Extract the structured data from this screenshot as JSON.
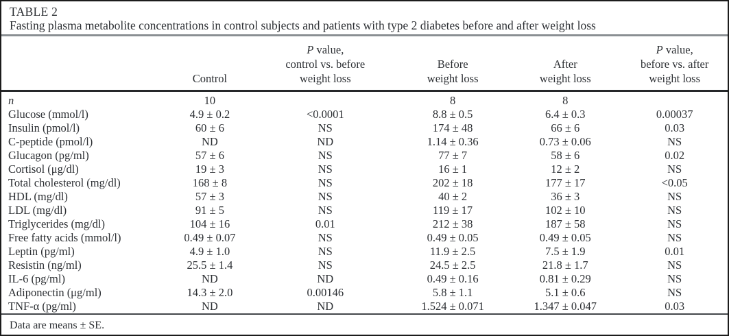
{
  "table": {
    "label": "TABLE 2",
    "caption": "Fasting plasma metabolite concentrations in control subjects and patients with type 2 diabetes before and after weight loss",
    "headers": [
      {
        "lines": []
      },
      {
        "lines": [
          "Control"
        ]
      },
      {
        "lines": [
          "P value,",
          "control vs. before",
          "weight loss"
        ]
      },
      {
        "lines": [
          "Before",
          "weight loss"
        ]
      },
      {
        "lines": [
          "After",
          "weight loss"
        ]
      },
      {
        "lines": [
          "P value,",
          "before vs. after",
          "weight loss"
        ]
      }
    ],
    "rows": [
      {
        "label": "n",
        "italic": true,
        "values": [
          "10",
          "",
          "8",
          "8",
          ""
        ]
      },
      {
        "label": "Glucose (mmol/l)",
        "values": [
          "4.9 ± 0.2",
          "<0.0001",
          "8.8 ± 0.5",
          "6.4 ± 0.3",
          "0.00037"
        ]
      },
      {
        "label": "Insulin (pmol/l)",
        "values": [
          "60 ± 6",
          "NS",
          "174 ± 48",
          "66 ± 6",
          "0.03"
        ]
      },
      {
        "label": "C-peptide (pmol/l)",
        "values": [
          "ND",
          "ND",
          "1.14 ± 0.36",
          "0.73 ± 0.06",
          "NS"
        ]
      },
      {
        "label": "Glucagon (pg/ml)",
        "values": [
          "57 ± 6",
          "NS",
          "77 ± 7",
          "58 ± 6",
          "0.02"
        ]
      },
      {
        "label": "Cortisol (μg/dl)",
        "values": [
          "19 ± 3",
          "NS",
          "16 ± 1",
          "12 ± 2",
          "NS"
        ]
      },
      {
        "label": "Total cholesterol (mg/dl)",
        "values": [
          "168 ± 8",
          "NS",
          "202 ± 18",
          "177 ± 17",
          "<0.05"
        ]
      },
      {
        "label": "HDL (mg/dl)",
        "values": [
          "57 ± 3",
          "NS",
          "40 ± 2",
          "36 ± 3",
          "NS"
        ]
      },
      {
        "label": "LDL (mg/dl)",
        "values": [
          "91 ± 5",
          "NS",
          "119 ± 17",
          "102 ± 10",
          "NS"
        ]
      },
      {
        "label": "Triglycerides (mg/dl)",
        "values": [
          "104 ± 16",
          "0.01",
          "212 ± 38",
          "187 ± 58",
          "NS"
        ]
      },
      {
        "label": "Free fatty acids (mmol/l)",
        "values": [
          "0.49 ± 0.07",
          "NS",
          "0.49 ± 0.05",
          "0.49 ± 0.05",
          "NS"
        ]
      },
      {
        "label": "Leptin (pg/ml)",
        "values": [
          "4.9 ± 1.0",
          "NS",
          "11.9 ± 2.5",
          "7.5 ± 1.9",
          "0.01"
        ]
      },
      {
        "label": "Resistin (ng/ml)",
        "values": [
          "25.5 ± 1.4",
          "NS",
          "24.5 ± 2.5",
          "21.8 ± 1.7",
          "NS"
        ]
      },
      {
        "label": "IL-6 (pg/ml)",
        "values": [
          "ND",
          "ND",
          "0.49 ± 0.16",
          "0.81 ± 0.29",
          "NS"
        ]
      },
      {
        "label": "Adiponectin (μg/ml)",
        "values": [
          "14.3 ± 2.0",
          "0.00146",
          "5.8 ± 1.1",
          "5.1 ± 0.6",
          "NS"
        ]
      },
      {
        "label": "TNF-α (pg/ml)",
        "values": [
          "ND",
          "ND",
          "1.524 ± 0.071",
          "1.347 ± 0.047",
          "0.03"
        ]
      }
    ],
    "footnote": "Data are means ± SE.",
    "colors": {
      "background": "#ffffff",
      "text": "#2c2f33",
      "rule_light": "#8a8f93",
      "rule_heavy": "#26282a",
      "border": "#1c1c1c"
    }
  }
}
